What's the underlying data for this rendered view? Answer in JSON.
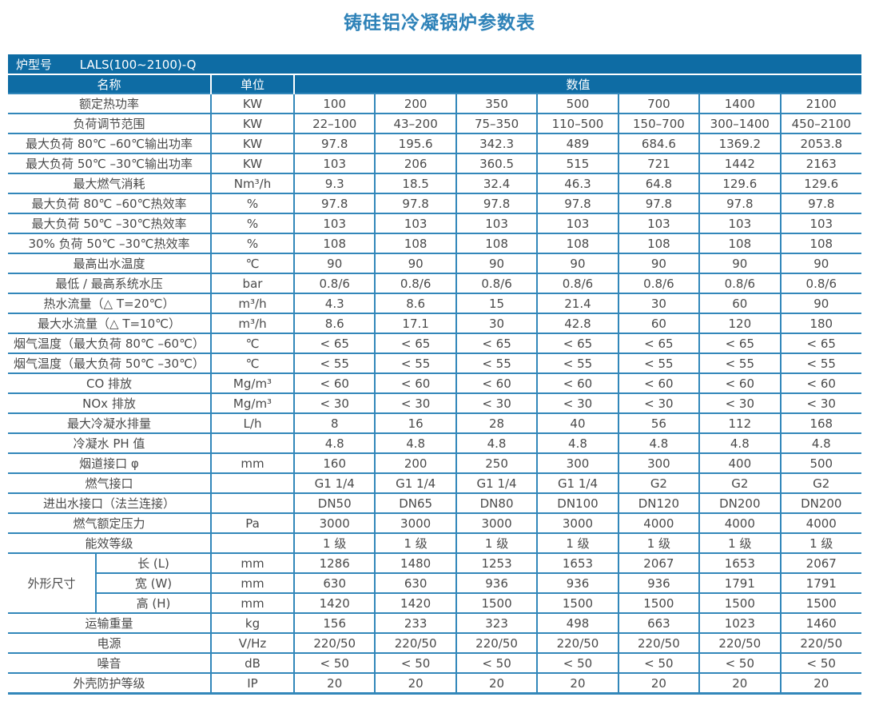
{
  "title": "铸硅铝冷凝锅炉参数表",
  "colors": {
    "header_bg": "#0e6ca4",
    "border": "#3287ba",
    "title_text": "#2e82b8",
    "body_text": "#4a4a4a"
  },
  "table": {
    "model_label": "炉型号",
    "model_value": "LALS(100~2100)-Q",
    "headers": {
      "name": "名称",
      "unit": "单位",
      "value": "数值"
    },
    "rows": [
      {
        "name": "额定热功率",
        "unit": "KW",
        "values": [
          "100",
          "200",
          "350",
          "500",
          "700",
          "1400",
          "2100"
        ]
      },
      {
        "name": "负荷调节范围",
        "unit": "KW",
        "values": [
          "22–100",
          "43–200",
          "75–350",
          "110–500",
          "150–700",
          "300–1400",
          "450–2100"
        ]
      },
      {
        "name": "最大负荷 80℃ –60℃输出功率",
        "unit": "KW",
        "values": [
          "97.8",
          "195.6",
          "342.3",
          "489",
          "684.6",
          "1369.2",
          "2053.8"
        ]
      },
      {
        "name": "最大负荷 50℃ –30℃输出功率",
        "unit": "KW",
        "values": [
          "103",
          "206",
          "360.5",
          "515",
          "721",
          "1442",
          "2163"
        ]
      },
      {
        "name": "最大燃气消耗",
        "unit": "Nm³/h",
        "values": [
          "9.3",
          "18.5",
          "32.4",
          "46.3",
          "64.8",
          "129.6",
          "129.6"
        ]
      },
      {
        "name": "最大负荷 80℃ –60℃热效率",
        "unit": "%",
        "values": [
          "97.8",
          "97.8",
          "97.8",
          "97.8",
          "97.8",
          "97.8",
          "97.8"
        ]
      },
      {
        "name": "最大负荷 50℃ –30℃热效率",
        "unit": "%",
        "values": [
          "103",
          "103",
          "103",
          "103",
          "103",
          "103",
          "103"
        ]
      },
      {
        "name": "30% 负荷 50℃ –30℃热效率",
        "unit": "%",
        "values": [
          "108",
          "108",
          "108",
          "108",
          "108",
          "108",
          "108"
        ]
      },
      {
        "name": "最高出水温度",
        "unit": "℃",
        "values": [
          "90",
          "90",
          "90",
          "90",
          "90",
          "90",
          "90"
        ]
      },
      {
        "name": "最低 / 最高系统水压",
        "unit": "bar",
        "values": [
          "0.8/6",
          "0.8/6",
          "0.8/6",
          "0.8/6",
          "0.8/6",
          "0.8/6",
          "0.8/6"
        ]
      },
      {
        "name": "热水流量（△ T=20℃）",
        "unit": "m³/h",
        "values": [
          "4.3",
          "8.6",
          "15",
          "21.4",
          "30",
          "60",
          "90"
        ]
      },
      {
        "name": "最大水流量（△ T=10℃）",
        "unit": "m³/h",
        "values": [
          "8.6",
          "17.1",
          "30",
          "42.8",
          "60",
          "120",
          "180"
        ]
      },
      {
        "name": "烟气温度（最大负荷 80℃ –60℃）",
        "unit": "℃",
        "values": [
          "< 65",
          "< 65",
          "< 65",
          "< 65",
          "< 65",
          "< 65",
          "< 65"
        ]
      },
      {
        "name": "烟气温度（最大负荷 50℃ –30℃）",
        "unit": "℃",
        "values": [
          "< 55",
          "< 55",
          "< 55",
          "< 55",
          "< 55",
          "< 55",
          "< 55"
        ]
      },
      {
        "name": "CO 排放",
        "unit": "Mg/m³",
        "values": [
          "< 60",
          "< 60",
          "< 60",
          "< 60",
          "< 60",
          "< 60",
          "< 60"
        ]
      },
      {
        "name": "NOx 排放",
        "unit": "Mg/m³",
        "values": [
          "< 30",
          "< 30",
          "< 30",
          "< 30",
          "< 30",
          "< 30",
          "< 30"
        ]
      },
      {
        "name": "最大冷凝水排量",
        "unit": "L/h",
        "values": [
          "8",
          "16",
          "28",
          "40",
          "56",
          "112",
          "168"
        ]
      },
      {
        "name": "冷凝水 PH 值",
        "unit": "",
        "values": [
          "4.8",
          "4.8",
          "4.8",
          "4.8",
          "4.8",
          "4.8",
          "4.8"
        ]
      },
      {
        "name": "烟道接口 φ",
        "unit": "mm",
        "values": [
          "160",
          "200",
          "250",
          "300",
          "300",
          "400",
          "500"
        ]
      },
      {
        "name": "燃气接口",
        "unit": "",
        "values": [
          "G1 1/4",
          "G1 1/4",
          "G1 1/4",
          "G1 1/4",
          "G2",
          "G2",
          "G2"
        ]
      },
      {
        "name": "进出水接口（法兰连接）",
        "unit": "",
        "values": [
          "DN50",
          "DN65",
          "DN80",
          "DN100",
          "DN120",
          "DN200",
          "DN200"
        ]
      },
      {
        "name": "燃气额定压力",
        "unit": "Pa",
        "values": [
          "3000",
          "3000",
          "3000",
          "3000",
          "4000",
          "4000",
          "4000"
        ]
      },
      {
        "name": "能效等级",
        "unit": "",
        "values": [
          "1 级",
          "1 级",
          "1 级",
          "1 级",
          "1 级",
          "1 级",
          "1 级"
        ]
      },
      {
        "group": "外形尺寸",
        "group_rows": 3,
        "name": "长 (L)",
        "unit": "mm",
        "values": [
          "1286",
          "1480",
          "1253",
          "1653",
          "2067",
          "1653",
          "2067"
        ]
      },
      {
        "in_group": true,
        "name": "宽 (W)",
        "unit": "mm",
        "values": [
          "630",
          "630",
          "936",
          "936",
          "936",
          "1791",
          "1791"
        ]
      },
      {
        "in_group": true,
        "name": "高 (H)",
        "unit": "mm",
        "values": [
          "1420",
          "1420",
          "1500",
          "1500",
          "1500",
          "1500",
          "1500"
        ]
      },
      {
        "name": "运输重量",
        "unit": "kg",
        "values": [
          "156",
          "233",
          "323",
          "498",
          "663",
          "1023",
          "1460"
        ]
      },
      {
        "name": "电源",
        "unit": "V/Hz",
        "values": [
          "220/50",
          "220/50",
          "220/50",
          "220/50",
          "220/50",
          "220/50",
          "220/50"
        ]
      },
      {
        "name": "噪音",
        "unit": "dB",
        "values": [
          "< 50",
          "< 50",
          "< 50",
          "< 50",
          "< 50",
          "< 50",
          "< 50"
        ]
      },
      {
        "name": "外壳防护等级",
        "unit": "IP",
        "values": [
          "20",
          "20",
          "20",
          "20",
          "20",
          "20",
          "20"
        ]
      }
    ]
  }
}
